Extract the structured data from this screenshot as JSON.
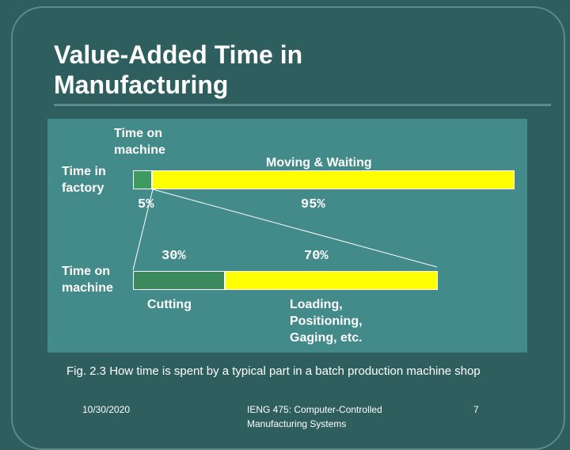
{
  "slide": {
    "title_line1": "Value-Added Time in",
    "title_line2": "Manufacturing"
  },
  "diagram": {
    "top_bar": {
      "label_line1": "Time in",
      "label_line2": "factory",
      "left_segment": {
        "header_line1": "Time on",
        "header_line2": "machine",
        "percent_label": "5%",
        "value": 5,
        "color": "#3f9a62"
      },
      "right_segment": {
        "header": "Moving & Waiting",
        "percent_label": "95%",
        "value": 95,
        "color": "#ffff00"
      }
    },
    "bottom_bar": {
      "label_line1": "Time on",
      "label_line2": "machine",
      "left_segment": {
        "footer": "Cutting",
        "percent_label": "30%",
        "value": 30,
        "color": "#3a8a5e"
      },
      "right_segment": {
        "footer_line1": "Loading,",
        "footer_line2": "Positioning,",
        "footer_line3": "Gaging, etc.",
        "percent_label": "70%",
        "value": 70,
        "color": "#ffff00"
      }
    }
  },
  "caption": "Fig. 2.3 How time is spent by a typical part in a batch production machine shop",
  "footer": {
    "date": "10/30/2020",
    "course_line1": "IENG 475: Computer-Controlled",
    "course_line2": "Manufacturing Systems",
    "page_number": "7"
  }
}
